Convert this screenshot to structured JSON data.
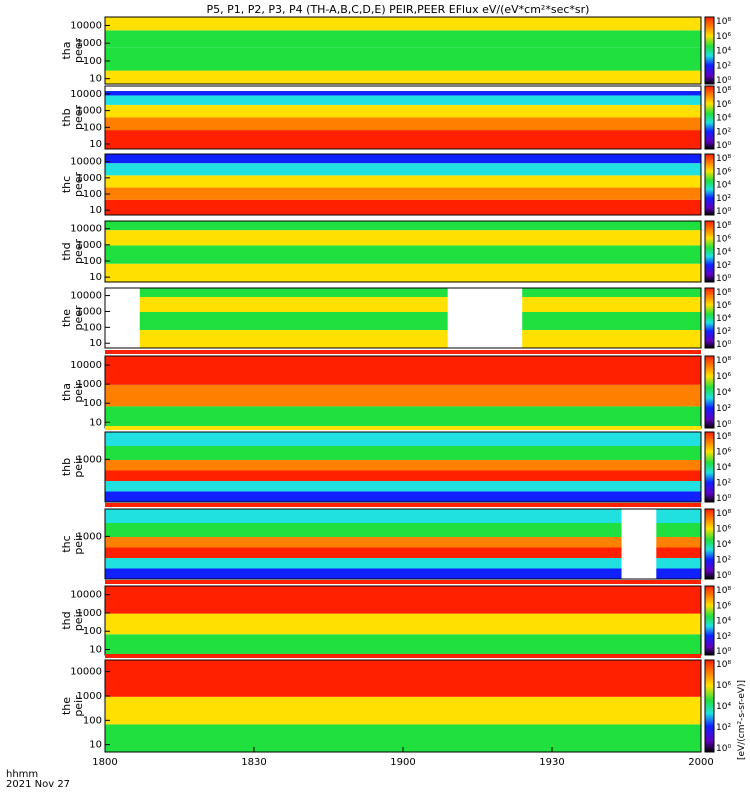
{
  "chart_data": {
    "type": "heatmap",
    "title": "P5, P1, P2, P3, P4 (TH-A,B,C,D,E) PEIR,PEER EFlux eV/(eV*cm²*sec*sr)",
    "xlabel_line1": "hhmm",
    "xlabel_line2": "2021 Nov 27",
    "x_ticks": [
      "1800",
      "1830",
      "1900",
      "1930",
      "2000"
    ],
    "x_range_minutes": [
      0,
      120
    ],
    "colorbar_label": "[eV/(cm²-s-sr-eV)]",
    "colorbar_ticks": [
      "10⁸",
      "10⁶",
      "10⁴",
      "10²",
      "10⁰"
    ],
    "panels": [
      {
        "name": "tha peer",
        "probe": "tha",
        "species": "peer",
        "y_ticks": [
          "10000",
          "1000",
          "100",
          "10"
        ],
        "y_range": [
          5,
          30000
        ],
        "gaps": [],
        "flag_bar": "none"
      },
      {
        "name": "thb peer",
        "probe": "thb",
        "species": "peer",
        "y_ticks": [
          "10000",
          "1000",
          "100",
          "10"
        ],
        "y_range": [
          5,
          30000
        ],
        "gaps": [
          [
            0,
            120,
            "top-band"
          ]
        ],
        "flag_bar": "none"
      },
      {
        "name": "thc peer",
        "probe": "thc",
        "species": "peer",
        "y_ticks": [
          "10000",
          "1000",
          "100",
          "10"
        ],
        "y_range": [
          5,
          30000
        ],
        "gaps": [],
        "flag_bar": "none"
      },
      {
        "name": "thd peer",
        "probe": "thd",
        "species": "peer",
        "y_ticks": [
          "10000",
          "1000",
          "100",
          "10"
        ],
        "y_range": [
          5,
          30000
        ],
        "gaps": [],
        "flag_bar": "none"
      },
      {
        "name": "the peer",
        "probe": "the",
        "species": "peer",
        "y_ticks": [
          "10000",
          "1000",
          "100",
          "10"
        ],
        "y_range": [
          5,
          30000
        ],
        "gaps": [
          [
            0,
            7
          ],
          [
            69,
            84
          ]
        ],
        "flag_bar": "none"
      },
      {
        "name": "tha peir",
        "probe": "tha",
        "species": "peir",
        "y_ticks": [
          "10000",
          "1000",
          "100",
          "10"
        ],
        "y_range": [
          5,
          30000
        ],
        "gaps": [],
        "flag_bar": "red-top"
      },
      {
        "name": "thb peir",
        "probe": "thb",
        "species": "peir",
        "y_ticks": [
          "1000"
        ],
        "y_range": [
          5,
          30000
        ],
        "gaps": [],
        "flag_bar": "yellow-top"
      },
      {
        "name": "thc peir",
        "probe": "thc",
        "species": "peir",
        "y_ticks": [
          "1000"
        ],
        "y_range": [
          5,
          30000
        ],
        "gaps": [
          [
            104,
            111
          ]
        ],
        "flag_bar": "red-top"
      },
      {
        "name": "thd peir",
        "probe": "thd",
        "species": "peir",
        "y_ticks": [
          "10000",
          "1000",
          "100",
          "10"
        ],
        "y_range": [
          5,
          30000
        ],
        "gaps": [],
        "flag_bar": "red-top"
      },
      {
        "name": "the peir",
        "probe": "the",
        "species": "peir",
        "y_ticks": [
          "10000",
          "1000",
          "100",
          "10"
        ],
        "y_range": [
          5,
          30000
        ],
        "gaps": [],
        "flag_bar": "red-yellow-top"
      }
    ]
  },
  "colors": {
    "red": "#ff2000",
    "orange": "#ff8000",
    "yellow": "#ffe000",
    "green": "#20e040",
    "cyan": "#20e0e0",
    "blue": "#1020ff",
    "black": "#000000"
  }
}
